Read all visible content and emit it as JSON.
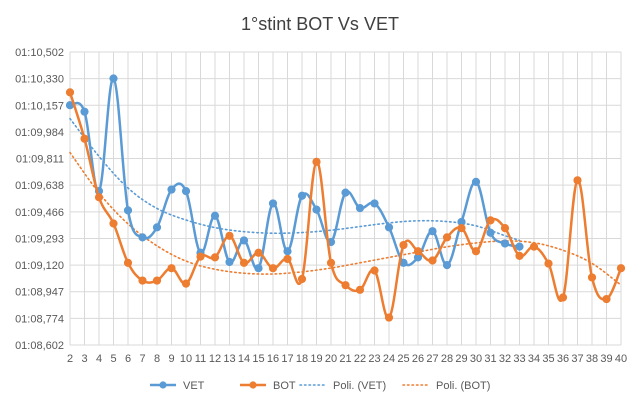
{
  "chart_data": {
    "type": "line",
    "title": "1°stint BOT Vs VET",
    "xlabel": "",
    "ylabel": "",
    "x": [
      2,
      3,
      4,
      5,
      6,
      7,
      8,
      9,
      10,
      11,
      12,
      13,
      14,
      15,
      16,
      17,
      18,
      19,
      20,
      21,
      22,
      23,
      24,
      25,
      26,
      27,
      28,
      29,
      30,
      31,
      32,
      33,
      34,
      35,
      36,
      37,
      38,
      39,
      40
    ],
    "y_tick_labels": [
      "01:08,602",
      "01:08,774",
      "01:08,947",
      "01:09,120",
      "01:09,293",
      "01:09,466",
      "01:09,638",
      "01:09,811",
      "01:09,984",
      "01:10,157",
      "01:10,330",
      "01:10,502"
    ],
    "ylim_seconds": [
      68.602,
      70.502
    ],
    "grid": true,
    "legend_position": "bottom",
    "series": [
      {
        "name": "VET",
        "color": "#5b9bd5",
        "style": "line-markers",
        "x": [
          2,
          3,
          4,
          5,
          6,
          7,
          8,
          9,
          10,
          11,
          12,
          13,
          14,
          15,
          16,
          17,
          18,
          19,
          20,
          21,
          22,
          23,
          24,
          25,
          26,
          27,
          28,
          29,
          30,
          31,
          32,
          33
        ],
        "values": [
          70.157,
          70.115,
          69.6,
          70.33,
          69.475,
          69.3,
          69.365,
          69.61,
          69.6,
          69.2,
          69.44,
          69.14,
          69.28,
          69.1,
          69.52,
          69.21,
          69.57,
          69.48,
          69.27,
          69.59,
          69.49,
          69.52,
          69.365,
          69.135,
          69.17,
          69.34,
          69.12,
          69.4,
          69.66,
          69.33,
          69.26,
          69.24
        ]
      },
      {
        "name": "BOT",
        "color": "#ed7d31",
        "style": "line-markers",
        "x": [
          2,
          3,
          4,
          5,
          6,
          7,
          8,
          9,
          10,
          11,
          12,
          13,
          14,
          15,
          16,
          17,
          18,
          19,
          20,
          21,
          22,
          23,
          24,
          25,
          26,
          27,
          28,
          29,
          30,
          31,
          32,
          33,
          34,
          35,
          36,
          37,
          38,
          39,
          40
        ],
        "values": [
          70.24,
          69.94,
          69.56,
          69.39,
          69.135,
          69.02,
          69.02,
          69.1,
          69.0,
          69.175,
          69.17,
          69.31,
          69.135,
          69.2,
          69.1,
          69.16,
          69.03,
          69.79,
          69.135,
          68.99,
          68.96,
          69.085,
          68.78,
          69.25,
          69.21,
          69.15,
          69.3,
          69.36,
          69.21,
          69.41,
          69.36,
          69.18,
          69.24,
          69.13,
          68.91,
          69.67,
          69.04,
          68.9,
          69.1
        ]
      },
      {
        "name": "Poli. (VET)",
        "color": "#5b9bd5",
        "style": "dotted",
        "x": [
          2,
          4,
          6,
          8,
          10,
          12,
          14,
          16,
          18,
          20,
          22,
          24,
          26,
          28,
          30,
          32,
          33
        ],
        "values": [
          70.07,
          69.82,
          69.61,
          69.48,
          69.41,
          69.36,
          69.335,
          69.325,
          69.33,
          69.345,
          69.37,
          69.395,
          69.41,
          69.405,
          69.38,
          69.31,
          69.28
        ]
      },
      {
        "name": "Poli. (BOT)",
        "color": "#ed7d31",
        "style": "dotted",
        "x": [
          2,
          4,
          6,
          8,
          10,
          12,
          14,
          16,
          18,
          20,
          22,
          24,
          26,
          28,
          30,
          32,
          34,
          36,
          38,
          40
        ],
        "values": [
          69.85,
          69.58,
          69.38,
          69.24,
          69.14,
          69.09,
          69.065,
          69.06,
          69.075,
          69.1,
          69.135,
          69.17,
          69.205,
          69.24,
          69.265,
          69.28,
          69.27,
          69.22,
          69.14,
          68.99
        ]
      }
    ]
  }
}
